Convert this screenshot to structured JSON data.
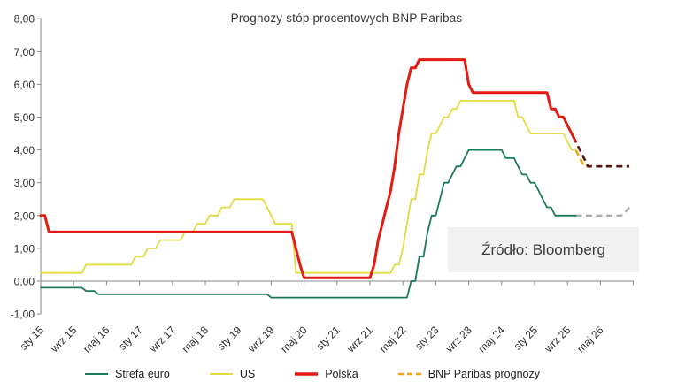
{
  "title": "Prognozy stóp procentowych BNP Paribas",
  "source": {
    "text": "Źródło: Bloomberg"
  },
  "legend": {
    "items": [
      {
        "label": "Strefa euro",
        "color": "#1b7a5b",
        "width": 2,
        "dash": null
      },
      {
        "label": "US",
        "color": "#e2dc41",
        "width": 2,
        "dash": null
      },
      {
        "label": "Polska",
        "color": "#e41b13",
        "width": 3.5,
        "dash": null
      },
      {
        "label": "BNP Paribas prognozy",
        "color": "#f2a60c",
        "width": 2.6,
        "dash": "6 4"
      }
    ]
  },
  "chart_data": {
    "type": "line",
    "title": "Prognozy stóp procentowych BNP Paribas",
    "unit": "procent (stopa procentowa)",
    "grid": false,
    "legend_position": "bottom",
    "x_axis": {
      "month0": "sty 15",
      "tick_interval_months": 8,
      "range_months": [
        0,
        144
      ],
      "tick_labels": [
        "sty 15",
        "wrz 15",
        "maj 16",
        "sty 17",
        "wrz 17",
        "maj 18",
        "sty 19",
        "wrz 19",
        "maj 20",
        "sty 21",
        "wrz 21",
        "maj 22",
        "sty 23",
        "wrz 23",
        "maj 24",
        "sty 25",
        "wrz 25",
        "maj 26"
      ]
    },
    "y_axis": {
      "min": -1,
      "max": 8,
      "step": 1,
      "tick_labels": [
        "8,00",
        "7,00",
        "6,00",
        "5,00",
        "4,00",
        "3,00",
        "2,00",
        "1,00",
        "0,00",
        "-1,00"
      ]
    },
    "series": [
      {
        "name": "Strefa euro",
        "color": "#1b7a5b",
        "width": 1.8,
        "dash": null,
        "end_month": 130,
        "changes": [
          [
            0,
            -0.2
          ],
          [
            11,
            -0.3
          ],
          [
            14,
            -0.4
          ],
          [
            56,
            -0.5
          ],
          [
            90,
            0
          ],
          [
            92,
            0.75
          ],
          [
            94,
            1.5
          ],
          [
            95,
            2
          ],
          [
            97,
            2.5
          ],
          [
            98,
            3
          ],
          [
            100,
            3.25
          ],
          [
            101,
            3.5
          ],
          [
            103,
            3.75
          ],
          [
            104,
            4
          ],
          [
            113,
            3.75
          ],
          [
            116,
            3.5
          ],
          [
            117,
            3.25
          ],
          [
            119,
            3
          ],
          [
            121,
            2.75
          ],
          [
            122,
            2.5
          ],
          [
            123,
            2.25
          ],
          [
            125,
            2
          ]
        ]
      },
      {
        "name": "US",
        "color": "#e2dc41",
        "width": 1.8,
        "dash": null,
        "end_month": 130,
        "changes": [
          [
            0,
            0.25
          ],
          [
            11,
            0.5
          ],
          [
            23,
            0.75
          ],
          [
            26,
            1
          ],
          [
            29,
            1.25
          ],
          [
            35,
            1.5
          ],
          [
            38,
            1.75
          ],
          [
            41,
            2
          ],
          [
            44,
            2.25
          ],
          [
            47,
            2.5
          ],
          [
            55,
            2.25
          ],
          [
            56,
            2
          ],
          [
            57,
            1.75
          ],
          [
            62,
            0.25
          ],
          [
            86,
            0.5
          ],
          [
            88,
            1
          ],
          [
            89,
            1.75
          ],
          [
            90,
            2.5
          ],
          [
            92,
            3.25
          ],
          [
            94,
            4
          ],
          [
            95,
            4.5
          ],
          [
            97,
            4.75
          ],
          [
            98,
            5
          ],
          [
            100,
            5.25
          ],
          [
            102,
            5.5
          ],
          [
            116,
            5
          ],
          [
            118,
            4.75
          ],
          [
            119,
            4.5
          ],
          [
            128,
            4.25
          ],
          [
            129,
            4
          ]
        ]
      },
      {
        "name": "Polska",
        "color": "#e41b13",
        "width": 3,
        "dash": null,
        "end_month": 130,
        "changes": [
          [
            0,
            2
          ],
          [
            2,
            1.5
          ],
          [
            62,
            1
          ],
          [
            63,
            0.5
          ],
          [
            64,
            0.1
          ],
          [
            81,
            0.5
          ],
          [
            82,
            1.25
          ],
          [
            83,
            1.75
          ],
          [
            84,
            2.25
          ],
          [
            85,
            2.75
          ],
          [
            86,
            3.5
          ],
          [
            87,
            4.5
          ],
          [
            88,
            5.25
          ],
          [
            89,
            6
          ],
          [
            90,
            6.5
          ],
          [
            92,
            6.75
          ],
          [
            104,
            6
          ],
          [
            105,
            5.75
          ],
          [
            124,
            5.25
          ],
          [
            126,
            5
          ],
          [
            128,
            4.75
          ],
          [
            129,
            4.5
          ],
          [
            130,
            4.25
          ]
        ]
      }
    ],
    "forecasts": [
      {
        "name": "Strefa euro - BNP Paribas prognoza",
        "color": "#ababab",
        "width": 2.4,
        "dash": "7 4.5",
        "end_month": 143,
        "changes": [
          [
            130,
            2
          ],
          [
            142,
            2.1
          ],
          [
            143,
            2.25
          ]
        ]
      },
      {
        "name": "US - BNP Paribas prognoza",
        "color": "#f2a60c",
        "width": 2.6,
        "dash": "7 4.5",
        "end_month": 143,
        "changes": [
          [
            130,
            4
          ],
          [
            131,
            3.75
          ],
          [
            132,
            3.5
          ]
        ]
      },
      {
        "name": "Polska - BNP Paribas prognoza",
        "color": "#521613",
        "width": 2.6,
        "dash": "7 4.5",
        "dash_offset": 6,
        "end_month": 143,
        "changes": [
          [
            130,
            4.25
          ],
          [
            131,
            4
          ],
          [
            132,
            3.75
          ],
          [
            133,
            3.5
          ]
        ]
      }
    ]
  }
}
